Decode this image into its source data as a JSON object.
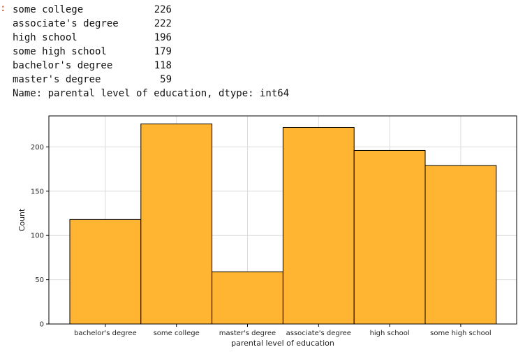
{
  "output": {
    "prompt_marker": ":",
    "rows": [
      {
        "label": "some college",
        "value": "226"
      },
      {
        "label": "associate's degree",
        "value": "222"
      },
      {
        "label": "high school",
        "value": "196"
      },
      {
        "label": "some high school",
        "value": "179"
      },
      {
        "label": "bachelor's degree",
        "value": "118"
      },
      {
        "label": "master's degree",
        "value": "59"
      }
    ],
    "footer": "Name: parental level of education, dtype: int64"
  },
  "chart_data": {
    "type": "bar",
    "categories": [
      "bachelor's degree",
      "some college",
      "master's degree",
      "associate's degree",
      "high school",
      "some high school"
    ],
    "values": [
      118,
      226,
      59,
      222,
      196,
      179
    ],
    "title": "",
    "xlabel": "parental level of education",
    "ylabel": "Count",
    "ylim": [
      0,
      235
    ],
    "yticks": [
      0,
      50,
      100,
      150,
      200
    ],
    "grid": true,
    "bar_color": "#ffb432",
    "edge_color": "#000000"
  }
}
